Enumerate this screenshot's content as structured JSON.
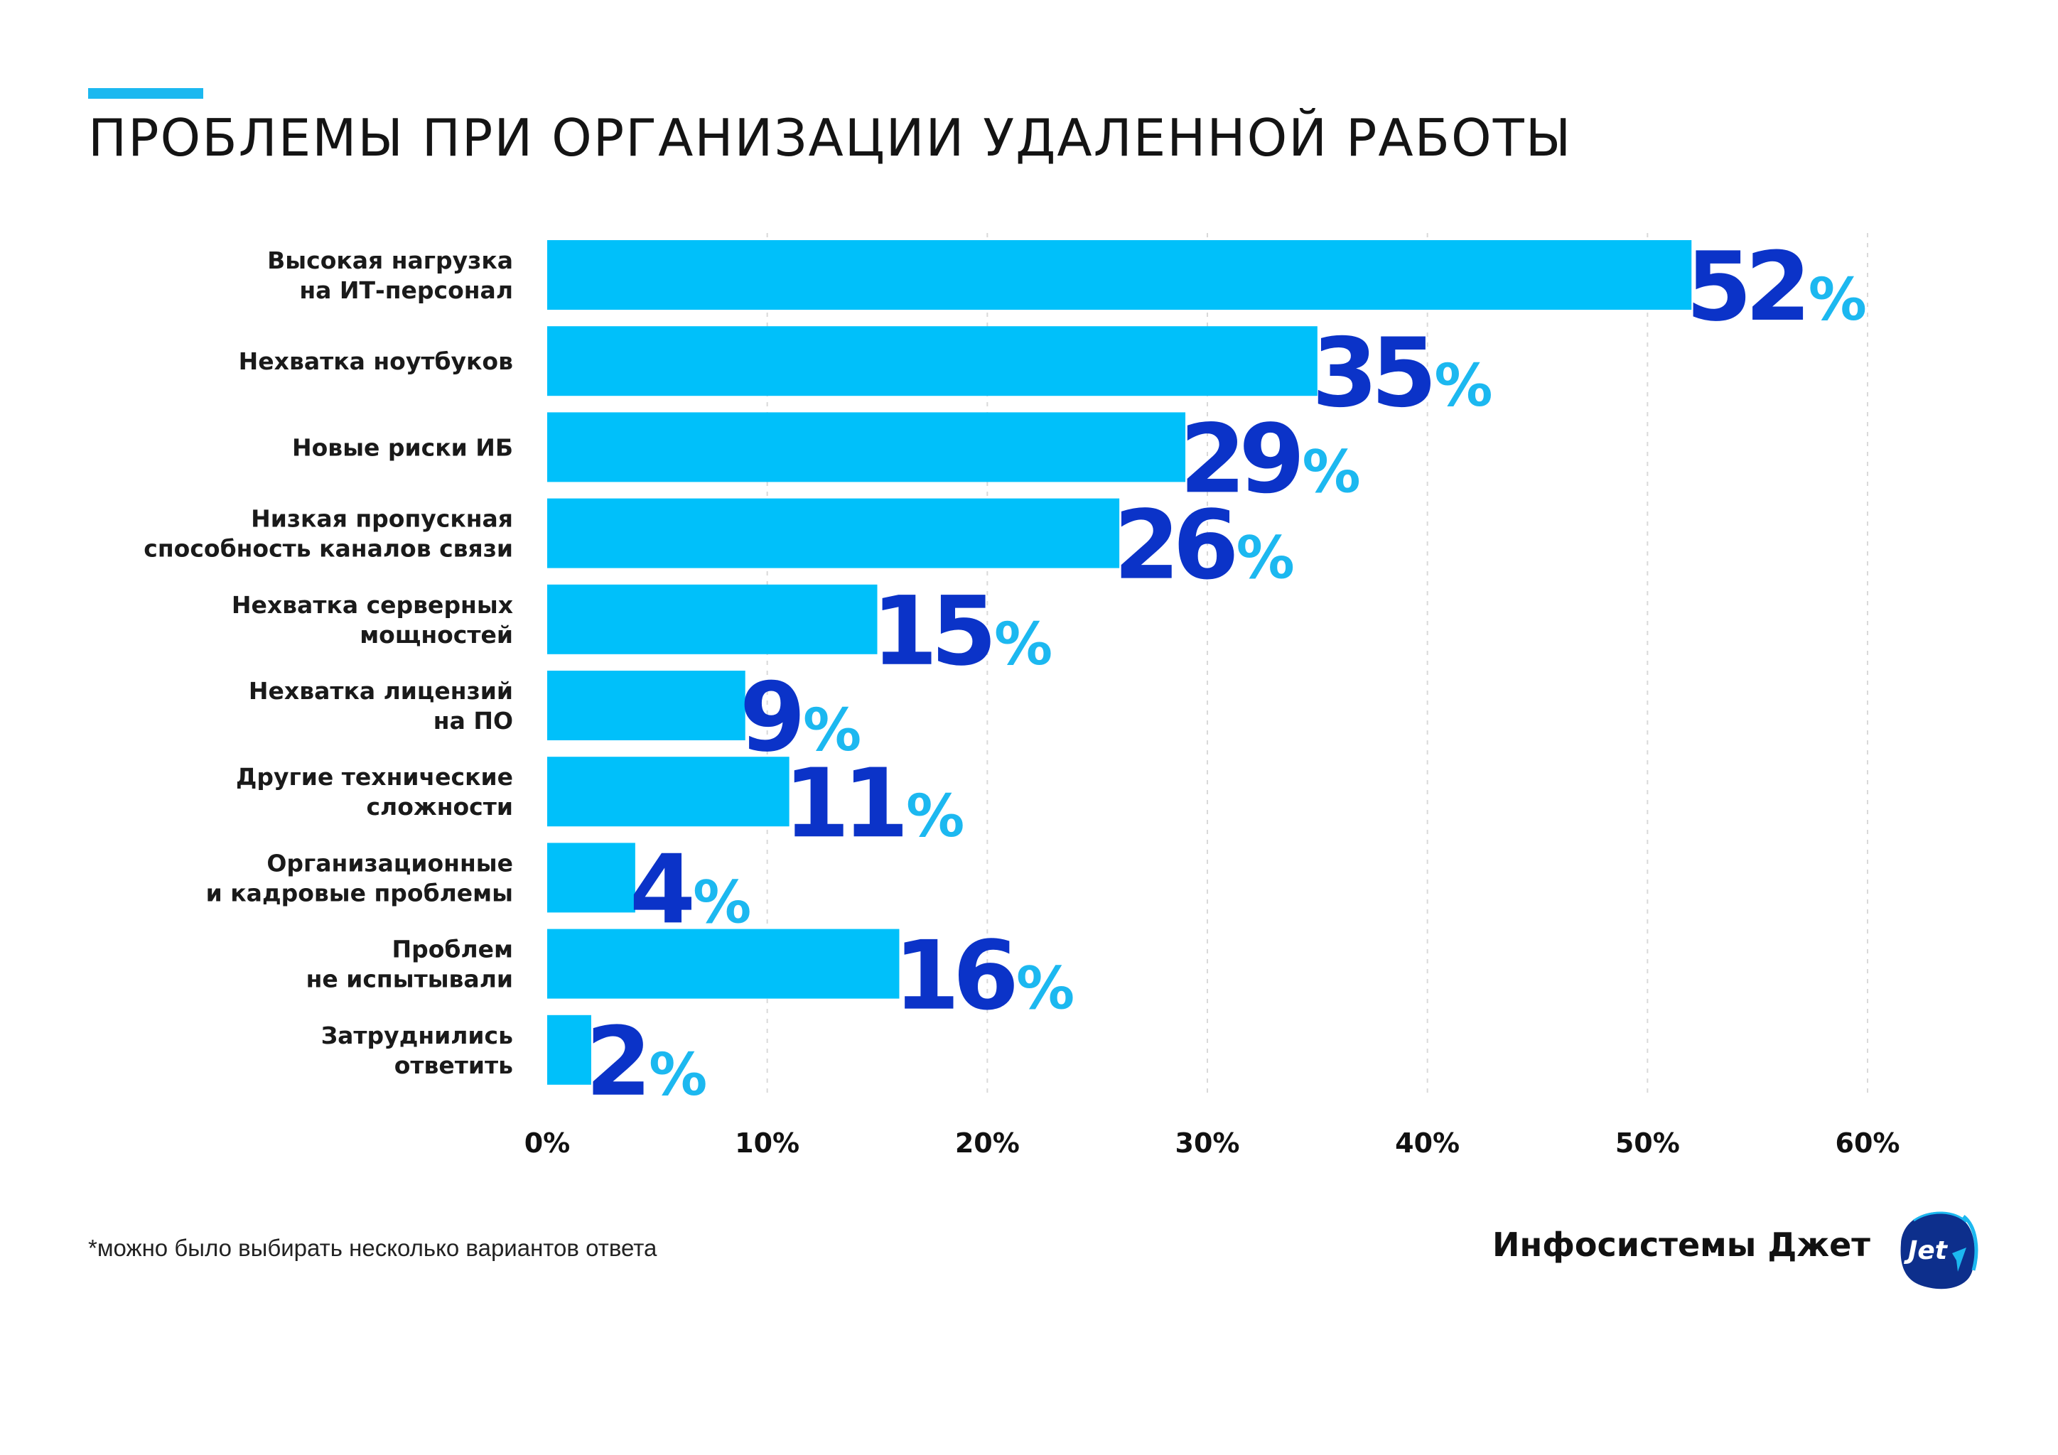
{
  "title": "ПРОБЛЕМЫ ПРИ ОРГАНИЗАЦИИ УДАЛЕННОЙ РАБОТЫ",
  "footnote": "*можно было выбирать несколько вариантов ответа",
  "company": "Инфосистемы Джет",
  "logo_text": "Jet",
  "colors": {
    "bar": "#00c0fa",
    "value_number": "#0b33c8",
    "value_percent": "#1cb8f0",
    "accent_line": "#1cb8f0",
    "grid": "#d9d9d9",
    "logo_bg": "#0d2f8c"
  },
  "chart_data": {
    "type": "bar",
    "orientation": "horizontal",
    "categories": [
      [
        "Высокая нагрузка",
        "на ИТ-персонал"
      ],
      [
        "Нехватка ноутбуков"
      ],
      [
        "Новые риски ИБ"
      ],
      [
        "Низкая пропускная",
        "способность каналов связи"
      ],
      [
        "Нехватка серверных",
        "мощностей"
      ],
      [
        "Нехватка лицензий",
        "на ПО"
      ],
      [
        "Другие технические",
        "сложности"
      ],
      [
        "Организационные",
        "и кадровые проблемы"
      ],
      [
        "Проблем",
        "не испытывали"
      ],
      [
        "Затруднились",
        "ответить"
      ]
    ],
    "values": [
      52,
      35,
      29,
      26,
      15,
      9,
      11,
      4,
      16,
      2
    ],
    "value_suffix": "%",
    "xlim": [
      0,
      60
    ],
    "x_ticks": [
      "0%",
      "10%",
      "20%",
      "30%",
      "40%",
      "50%",
      "60%"
    ],
    "grid": "vertical dashed",
    "legend": "none"
  }
}
